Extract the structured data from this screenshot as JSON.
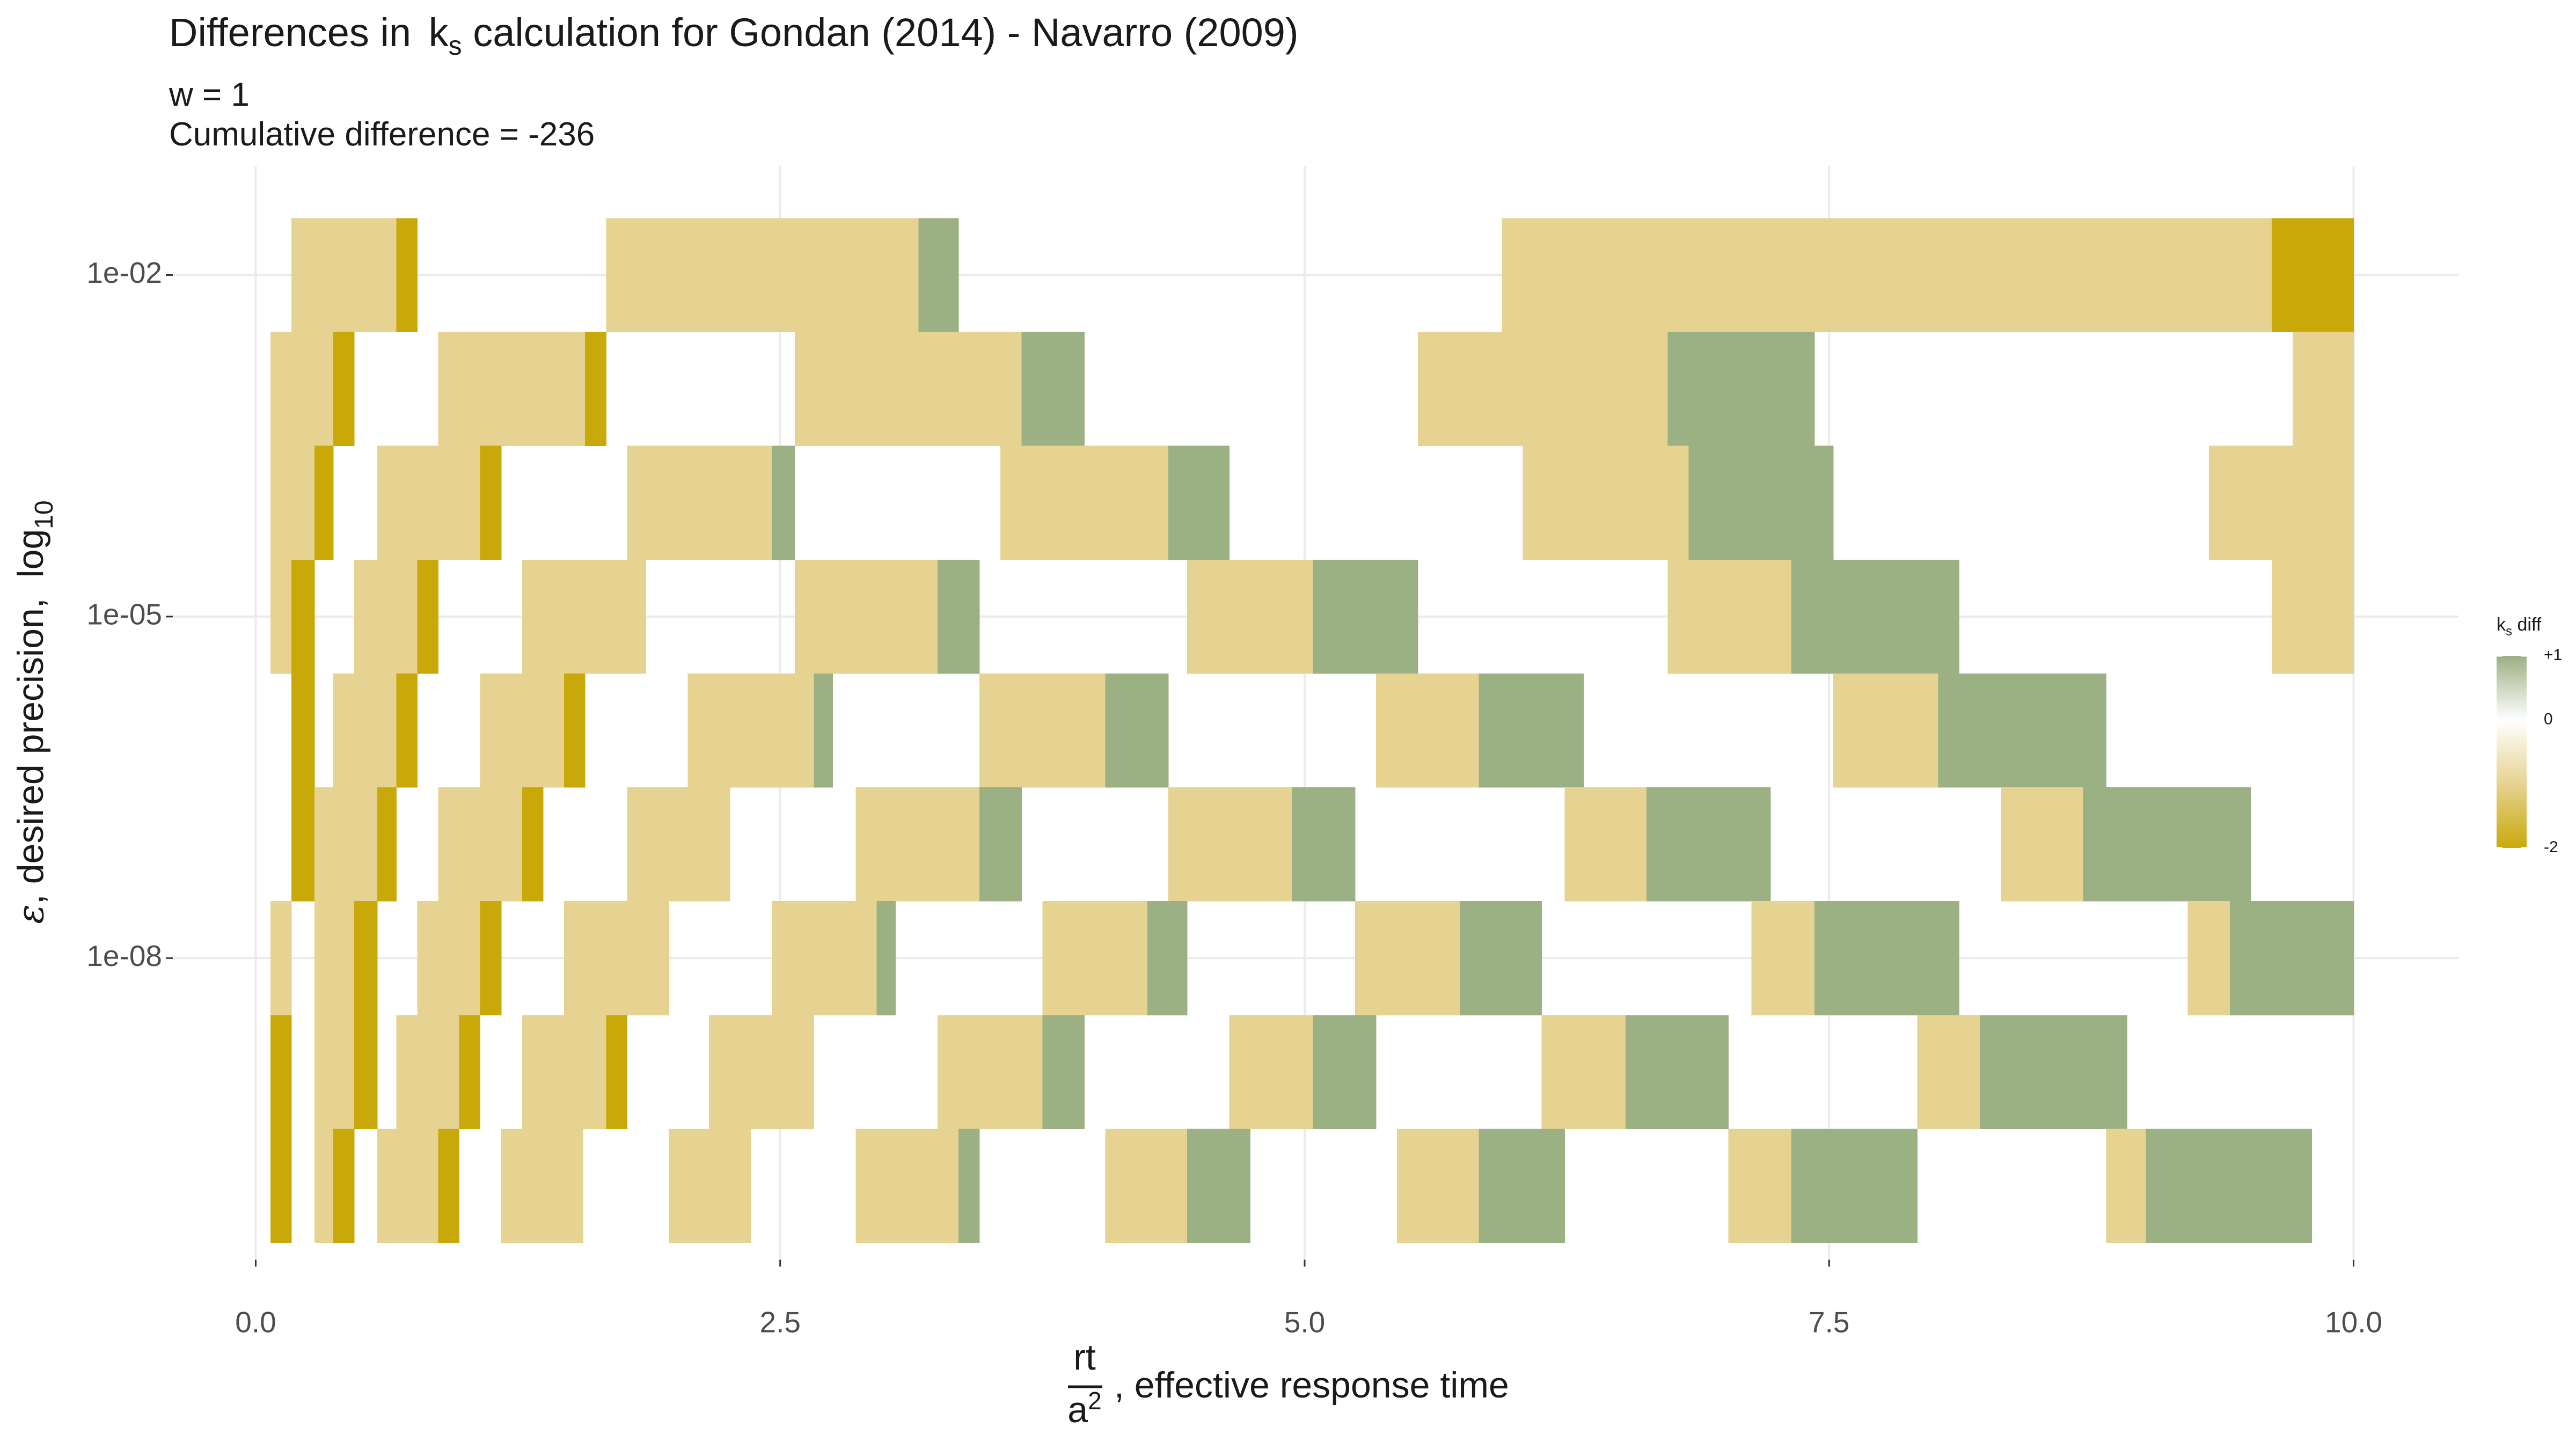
{
  "chart_data": {
    "type": "heatmap",
    "title": [
      "Differences in ",
      "k",
      "s",
      " calculation for Gondan (2014) - Navarro (2009)"
    ],
    "subtitle": [
      "w = 1",
      "Cumulative difference = -236"
    ],
    "xlabel": {
      "numerator": "rt",
      "denominator": "a",
      "exponent": "2",
      "text": ", effective response time"
    },
    "ylabel": {
      "symbol": "ε",
      "text": ", desired precision,  log",
      "subscript": "10"
    },
    "xlim": [
      -0.39,
      10.5
    ],
    "xticks": [
      {
        "value": 0,
        "label": "0.0"
      },
      2.5,
      {
        "value": 5,
        "label": "5.0"
      },
      7.5,
      {
        "value": 10,
        "label": "10.0"
      }
    ],
    "ylim": [
      2.3e-11,
      0.091
    ],
    "ylog": true,
    "yticks": [
      {
        "value": 0.01,
        "label": "1e-02"
      },
      {
        "value": 1e-05,
        "label": "1e-05"
      },
      {
        "value": 1e-08,
        "label": "1e-08"
      }
    ],
    "grid": true,
    "legend": {
      "title": {
        "main": "k",
        "subscript": "s",
        "text": " diff"
      },
      "limits": [
        -2,
        1
      ],
      "ticks": [
        {
          "value": 1,
          "label": "+1"
        },
        0,
        -2
      ],
      "colors": [
        "#c9a90a",
        "#e6d391",
        "#ffffff",
        "#9bb083"
      ],
      "position": "right"
    },
    "rows": [
      {
        "y": 0.01,
        "x0": [
          0.17,
          0.67,
          1.67,
          3.16,
          5.94,
          9.61
        ],
        "x1": [
          0.67,
          0.77,
          3.16,
          3.35,
          9.61,
          10.0
        ],
        "values": [
          -1,
          -2,
          -1,
          1,
          -1,
          -2
        ]
      },
      {
        "y": 0.001,
        "x0": [
          0.07,
          0.37,
          0.87,
          1.57,
          2.57,
          3.65,
          5.54,
          6.73,
          9.71
        ],
        "x1": [
          0.37,
          0.47,
          1.57,
          1.67,
          3.65,
          3.95,
          6.73,
          7.43,
          10.0
        ],
        "values": [
          -1,
          -2,
          -1,
          -2,
          -1,
          1,
          -1,
          1,
          -1
        ]
      },
      {
        "y": 0.0001,
        "x0": [
          0.07,
          0.28,
          0.58,
          1.07,
          1.77,
          2.46,
          3.55,
          4.35,
          6.04,
          6.83,
          9.31
        ],
        "x1": [
          0.28,
          0.37,
          1.07,
          1.17,
          2.46,
          2.57,
          4.35,
          4.64,
          6.83,
          7.52,
          10.0
        ],
        "values": [
          -1,
          -2,
          -1,
          -2,
          -1,
          1,
          -1,
          1,
          -1,
          1,
          -1
        ]
      },
      {
        "y": 1e-05,
        "x0": [
          0.07,
          0.17,
          0.47,
          0.77,
          1.27,
          2.57,
          3.25,
          4.44,
          5.04,
          6.73,
          7.32,
          9.61
        ],
        "x1": [
          0.17,
          0.28,
          0.77,
          0.87,
          1.86,
          3.25,
          3.45,
          5.04,
          5.54,
          7.32,
          8.12,
          10.0
        ],
        "values": [
          -1,
          -2,
          -1,
          -2,
          -1,
          -1,
          1,
          -1,
          1,
          -1,
          1,
          -1
        ]
      },
      {
        "y": 1e-06,
        "x0": [
          0.17,
          0.37,
          0.67,
          1.07,
          1.47,
          2.06,
          2.66,
          3.45,
          4.05,
          5.34,
          5.83,
          7.52,
          8.02
        ],
        "x1": [
          0.28,
          0.67,
          0.77,
          1.47,
          1.57,
          2.66,
          2.75,
          4.05,
          4.35,
          5.83,
          6.33,
          8.02,
          8.82
        ],
        "values": [
          -2,
          -1,
          -2,
          -1,
          -2,
          -1,
          1,
          -1,
          1,
          -1,
          1,
          -1,
          1
        ]
      },
      {
        "y": 1e-07,
        "x0": [
          0.17,
          0.28,
          0.58,
          0.87,
          1.27,
          1.77,
          2.86,
          3.45,
          4.35,
          4.94,
          6.24,
          6.63,
          8.32,
          8.71
        ],
        "x1": [
          0.28,
          0.58,
          0.67,
          1.27,
          1.37,
          2.26,
          3.45,
          3.65,
          4.94,
          5.24,
          6.63,
          7.22,
          8.71,
          9.51
        ],
        "values": [
          -2,
          -1,
          -2,
          -1,
          -2,
          -1,
          -1,
          1,
          -1,
          1,
          -1,
          1,
          -1,
          1
        ]
      },
      {
        "y": 1e-08,
        "x0": [
          0.07,
          0.28,
          0.47,
          0.77,
          1.07,
          1.47,
          2.46,
          2.96,
          3.75,
          4.25,
          5.24,
          5.74,
          7.13,
          7.43,
          9.21,
          9.41
        ],
        "x1": [
          0.17,
          0.47,
          0.58,
          1.07,
          1.17,
          1.97,
          2.96,
          3.05,
          4.25,
          4.44,
          5.74,
          6.13,
          7.43,
          8.12,
          9.41,
          10.0
        ],
        "values": [
          -1,
          -1,
          -2,
          -1,
          -2,
          -1,
          -1,
          1,
          -1,
          1,
          -1,
          1,
          -1,
          1,
          -1,
          1
        ]
      },
      {
        "y": 1e-09,
        "x0": [
          0.07,
          0.28,
          0.47,
          0.67,
          0.97,
          1.27,
          1.67,
          2.16,
          3.25,
          3.75,
          4.64,
          5.04,
          6.13,
          6.53,
          7.92,
          8.22
        ],
        "x1": [
          0.17,
          0.47,
          0.58,
          0.97,
          1.07,
          1.67,
          1.77,
          2.66,
          3.75,
          3.95,
          5.04,
          5.34,
          6.53,
          7.02,
          8.22,
          8.92
        ],
        "values": [
          -2,
          -1,
          -2,
          -1,
          -2,
          -1,
          -2,
          -1,
          -1,
          1,
          -1,
          1,
          -1,
          1,
          -1,
          1
        ]
      },
      {
        "y": 1e-10,
        "x0": [
          0.07,
          0.28,
          0.37,
          0.58,
          0.87,
          1.17,
          1.97,
          2.86,
          3.35,
          4.05,
          4.44,
          5.44,
          5.83,
          7.02,
          7.32,
          8.82,
          9.01
        ],
        "x1": [
          0.17,
          0.37,
          0.47,
          0.87,
          0.97,
          1.56,
          2.36,
          3.35,
          3.45,
          4.44,
          4.74,
          5.83,
          6.24,
          7.32,
          7.92,
          9.01,
          9.8
        ],
        "values": [
          -2,
          -1,
          -2,
          -1,
          -2,
          -1,
          -1,
          -1,
          1,
          -1,
          1,
          -1,
          1,
          -1,
          1,
          -1,
          1
        ]
      }
    ]
  }
}
